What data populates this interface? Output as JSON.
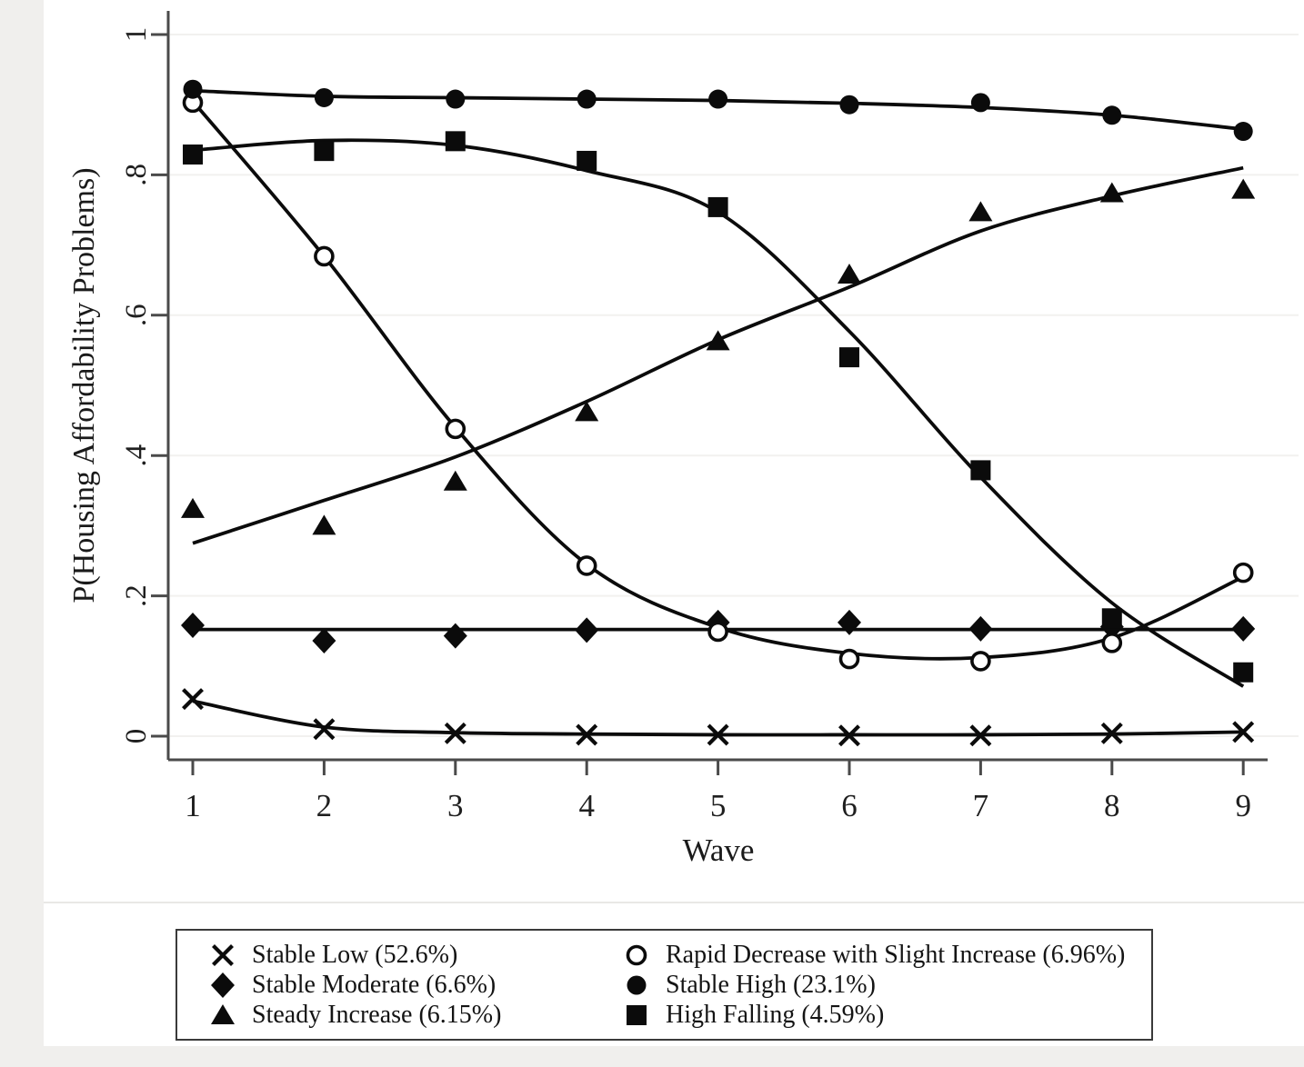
{
  "chart_data": {
    "type": "line",
    "x": [
      1,
      2,
      3,
      4,
      5,
      6,
      7,
      8,
      9
    ],
    "xlabel": "Wave",
    "ylabel": "P(Housing Affordability Problems)",
    "ylim": [
      0,
      1
    ],
    "yticks": [
      0,
      0.2,
      0.4,
      0.6,
      0.8,
      1
    ],
    "ytick_labels": [
      "0",
      ".2",
      ".4",
      ".6",
      ".8",
      "1"
    ],
    "xtick_labels": [
      "1",
      "2",
      "3",
      "4",
      "5",
      "6",
      "7",
      "8",
      "9"
    ],
    "grid": "horizontal-light",
    "legend_position": "bottom-box-two-columns",
    "series": [
      {
        "key": "stable-low",
        "name": "Stable Low (52.6%)",
        "marker": "x",
        "markers": [
          0.053,
          0.01,
          0.004,
          0.002,
          0.002,
          0.001,
          0.001,
          0.004,
          0.006
        ],
        "line": [
          0.05,
          0.013,
          0.005,
          0.003,
          0.002,
          0.002,
          0.002,
          0.003,
          0.006
        ]
      },
      {
        "key": "stable-moderate",
        "name": "Stable Moderate (6.6%)",
        "marker": "diamond-filled",
        "markers": [
          0.158,
          0.136,
          0.143,
          0.151,
          0.162,
          0.162,
          0.153,
          0.156,
          0.153
        ],
        "line": [
          0.152,
          0.152,
          0.152,
          0.152,
          0.152,
          0.152,
          0.152,
          0.152,
          0.152
        ]
      },
      {
        "key": "steady-increase",
        "name": "Steady Increase (6.15%)",
        "marker": "triangle-filled",
        "markers": [
          0.324,
          0.3,
          0.363,
          0.462,
          0.563,
          0.658,
          0.747,
          0.774,
          0.779
        ],
        "line": [
          0.275,
          0.336,
          0.398,
          0.477,
          0.565,
          0.64,
          0.72,
          0.77,
          0.81
        ]
      },
      {
        "key": "rapid-decrease",
        "name": "Rapid Decrease with Slight Increase (6.96%)",
        "marker": "circle-open",
        "markers": [
          0.903,
          0.684,
          0.438,
          0.243,
          0.149,
          0.11,
          0.107,
          0.133,
          0.233
        ],
        "line": [
          0.905,
          0.684,
          0.44,
          0.245,
          0.155,
          0.118,
          0.112,
          0.14,
          0.227
        ]
      },
      {
        "key": "stable-high",
        "name": "Stable High (23.1%)",
        "marker": "circle-filled",
        "markers": [
          0.922,
          0.91,
          0.908,
          0.908,
          0.908,
          0.9,
          0.903,
          0.885,
          0.862
        ],
        "line": [
          0.92,
          0.912,
          0.91,
          0.908,
          0.906,
          0.902,
          0.896,
          0.885,
          0.865
        ]
      },
      {
        "key": "high-falling",
        "name": "High Falling (4.59%)",
        "marker": "square-filled",
        "markers": [
          0.829,
          0.834,
          0.848,
          0.82,
          0.754,
          0.54,
          0.379,
          0.168,
          0.091
        ],
        "line": [
          0.835,
          0.849,
          0.842,
          0.806,
          0.747,
          0.577,
          0.369,
          0.19,
          0.071
        ]
      }
    ]
  },
  "legend": {
    "order": [
      0,
      3,
      1,
      4,
      2,
      5
    ]
  },
  "colors": {
    "ink": "#0b0b0b",
    "axis": "#4a4a4a",
    "grid": "#f2f1ef",
    "bg": "#ffffff",
    "outer": "#f0efed",
    "divider": "#e9e8e5",
    "text": "#1f1f1f"
  }
}
